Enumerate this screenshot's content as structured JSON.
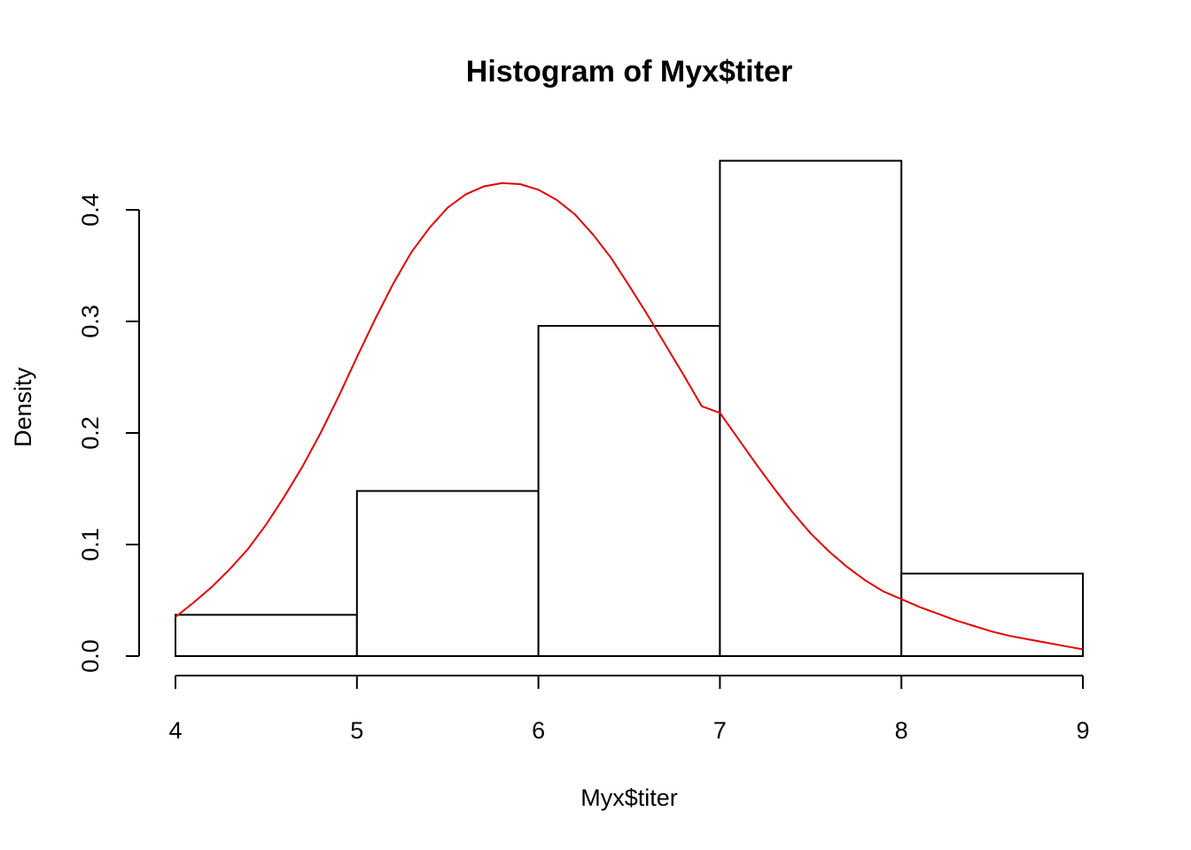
{
  "chart_data": {
    "type": "bar",
    "title": "Histogram of Myx$titer",
    "xlabel": "Myx$titer",
    "ylabel": "Density",
    "xlim": [
      4,
      9
    ],
    "ylim": [
      0,
      0.45
    ],
    "bins": [
      {
        "x0": 4,
        "x1": 5,
        "density": 0.037
      },
      {
        "x0": 5,
        "x1": 6,
        "density": 0.148
      },
      {
        "x0": 6,
        "x1": 7,
        "density": 0.296
      },
      {
        "x0": 7,
        "x1": 8,
        "density": 0.444
      },
      {
        "x0": 8,
        "x1": 9,
        "density": 0.074
      }
    ],
    "x_ticks": [
      "4",
      "5",
      "6",
      "7",
      "8",
      "9"
    ],
    "y_ticks": [
      "0.0",
      "0.1",
      "0.2",
      "0.3",
      "0.4"
    ],
    "density_curve": {
      "color": "#e00000",
      "x": [
        4.0,
        4.1,
        4.2,
        4.3,
        4.4,
        4.5,
        4.6,
        4.7,
        4.8,
        4.9,
        5.0,
        5.1,
        5.2,
        5.3,
        5.4,
        5.5,
        5.6,
        5.7,
        5.8,
        5.9,
        6.0,
        6.1,
        6.2,
        6.3,
        6.4,
        6.5,
        6.6,
        6.7,
        6.8,
        6.9,
        7.0,
        7.1,
        7.2,
        7.3,
        7.4,
        7.5,
        7.6,
        7.7,
        7.8,
        7.9,
        8.0,
        8.1,
        8.2,
        8.3,
        8.4,
        8.5,
        8.6,
        8.7,
        8.8,
        8.9,
        9.0
      ],
      "y": [
        0.035,
        0.048,
        0.062,
        0.078,
        0.096,
        0.118,
        0.143,
        0.17,
        0.2,
        0.233,
        0.268,
        0.302,
        0.334,
        0.362,
        0.384,
        0.402,
        0.414,
        0.421,
        0.424,
        0.423,
        0.418,
        0.409,
        0.396,
        0.378,
        0.357,
        0.332,
        0.306,
        0.279,
        0.252,
        0.224,
        0.218,
        0.195,
        0.172,
        0.15,
        0.129,
        0.11,
        0.094,
        0.08,
        0.068,
        0.058,
        0.051,
        0.044,
        0.038,
        0.032,
        0.027,
        0.022,
        0.018,
        0.015,
        0.012,
        0.009,
        0.006
      ]
    }
  }
}
